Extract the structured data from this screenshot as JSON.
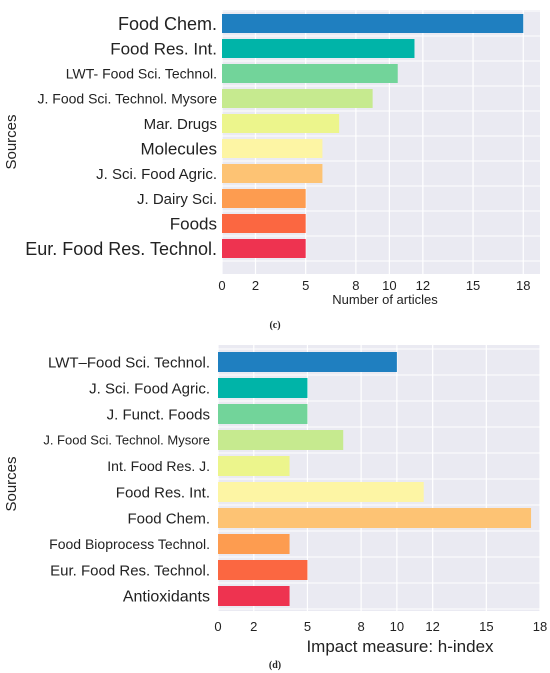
{
  "chart_data": [
    {
      "type": "bar",
      "orientation": "horizontal",
      "caption": "(c)",
      "ylabel": "Sources",
      "xlabel": "Number of articles",
      "xlim": [
        0,
        19
      ],
      "xticks": [
        0,
        2,
        5,
        8,
        10,
        12,
        15,
        18
      ],
      "grid": true,
      "categories": [
        "Food Chem.",
        "Food Res. Int.",
        "LWT- Food Sci. Technol.",
        "J. Food Sci. Technol. Mysore",
        "Mar. Drugs",
        "Molecules",
        "J. Sci. Food Agric.",
        "J. Dairy Sci.",
        "Foods",
        "Eur. Food Res. Technol."
      ],
      "values": [
        18,
        11.5,
        10.5,
        9,
        7,
        6,
        6,
        5,
        5,
        5
      ],
      "colors": [
        "#1f7fc0",
        "#00b4a8",
        "#72d49a",
        "#c6ea8f",
        "#ecf58c",
        "#fdf5a4",
        "#fdc374",
        "#fd9c50",
        "#fb6741",
        "#ee3350"
      ]
    },
    {
      "type": "bar",
      "orientation": "horizontal",
      "caption": "(d)",
      "ylabel": "Sources",
      "xlabel": "Impact measure: h-index",
      "xlim": [
        0,
        18
      ],
      "xticks": [
        0,
        2,
        5,
        8,
        10,
        12,
        15,
        18
      ],
      "grid": true,
      "categories": [
        "LWT–Food Sci. Technol.",
        "J. Sci. Food Agric.",
        "J. Funct. Foods",
        "J. Food Sci. Technol. Mysore",
        "Int. Food Res. J.",
        "Food Res. Int.",
        "Food Chem.",
        "Food Bioprocess Technol.",
        "Eur. Food Res. Technol.",
        "Antioxidants"
      ],
      "values": [
        10,
        5,
        5,
        7,
        4,
        11.5,
        17.5,
        4,
        5,
        4
      ],
      "colors": [
        "#1f7fc0",
        "#00b4a8",
        "#72d49a",
        "#c6ea8f",
        "#ecf58c",
        "#fdf5a4",
        "#fdc374",
        "#fd9c50",
        "#fb6741",
        "#ee3350"
      ]
    }
  ]
}
